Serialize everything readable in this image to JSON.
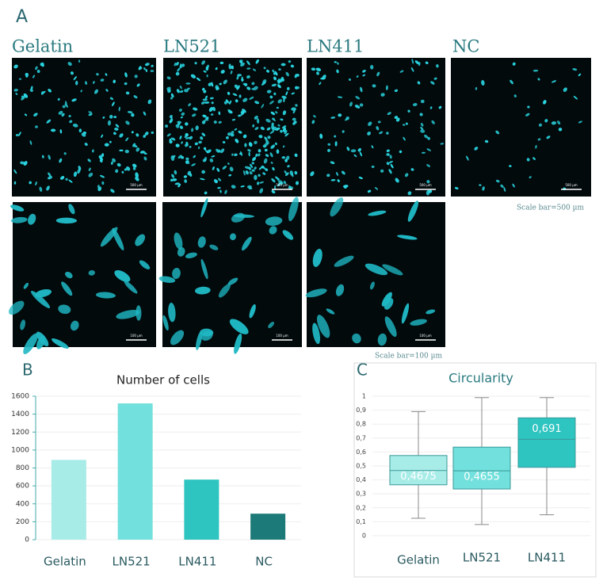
{
  "panel_labels": [
    "A",
    "B",
    "C"
  ],
  "images": {
    "columns": [
      "Gelatin",
      "LN521",
      "LN411",
      "NC"
    ],
    "inset_scale_labels": [
      "500 µm",
      "100 µm"
    ],
    "scale_bars": [
      "Scale bar=500 µm",
      "Scale bar=100 µm"
    ]
  },
  "chart_data": [
    {
      "type": "bar",
      "title": "Number of cells",
      "categories": [
        "Gelatin",
        "LN521",
        "LN411",
        "NC"
      ],
      "values": [
        890,
        1520,
        670,
        290
      ],
      "colors": [
        "#a8ece8",
        "#72e0dc",
        "#2ec4c0",
        "#1c7a78"
      ],
      "ylim": [
        0,
        1600
      ],
      "yticks": [
        0,
        200,
        400,
        600,
        800,
        1000,
        1200,
        1400,
        1600
      ],
      "grid": true
    },
    {
      "type": "box",
      "title": "Circularity",
      "categories": [
        "Gelatin",
        "LN521",
        "LN411"
      ],
      "whisker_low": [
        0.125,
        0.08,
        0.15
      ],
      "q1": [
        0.365,
        0.335,
        0.49
      ],
      "medians": [
        0.4675,
        0.4655,
        0.691
      ],
      "q3": [
        0.575,
        0.635,
        0.845
      ],
      "whisker_high": [
        0.89,
        0.99,
        0.99
      ],
      "median_labels": [
        "0,4675",
        "0,4655",
        "0,691"
      ],
      "colors": [
        "#a8ece8",
        "#72e0dc",
        "#2ec4c0"
      ],
      "ylim": [
        0,
        1
      ],
      "yticks": [
        0,
        {
          "value": 0.1,
          "label": "0,1"
        },
        {
          "value": 0.2,
          "label": "0,2"
        },
        {
          "value": 0.3,
          "label": "0,3"
        },
        {
          "value": 0.4,
          "label": "0,4"
        },
        {
          "value": 0.5,
          "label": "0,5"
        },
        {
          "value": 0.6,
          "label": "0,6"
        },
        {
          "value": 0.7,
          "label": "0,7"
        },
        {
          "value": 0.8,
          "label": "0,8"
        },
        {
          "value": 0.9,
          "label": "0,9"
        },
        1
      ],
      "grid": true
    }
  ]
}
